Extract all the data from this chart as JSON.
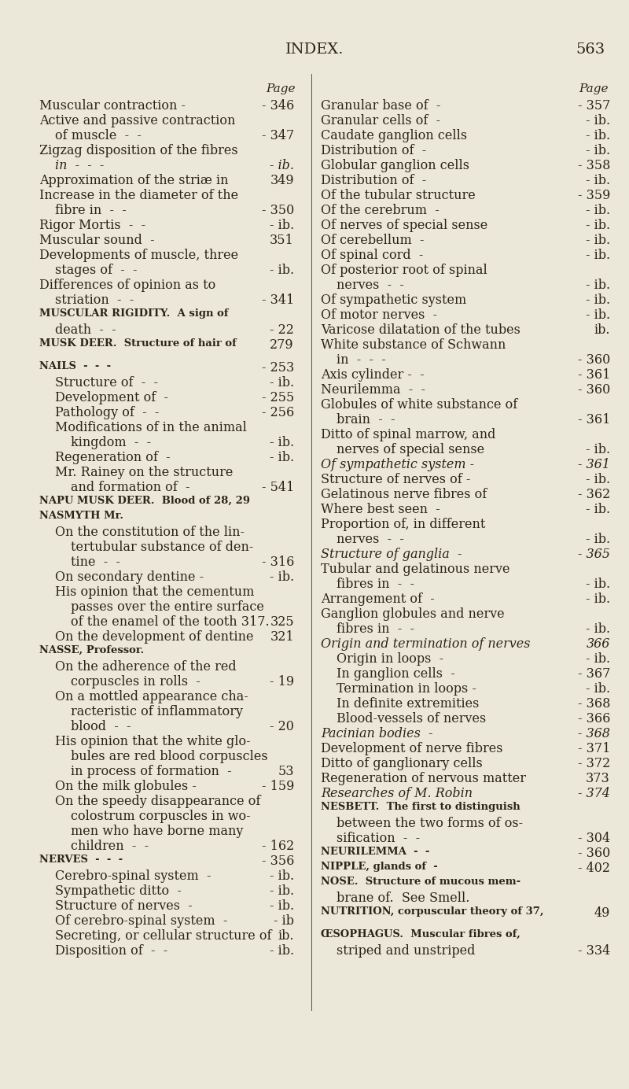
{
  "bg_color": "#ece8d9",
  "text_color": "#2b2418",
  "title": "INDEX.",
  "page_num": "563",
  "figsize": [
    8.0,
    13.84
  ],
  "dpi": 100,
  "title_fontsize": 14,
  "body_fontsize": 11.5,
  "page_header_fontsize": 11,
  "left_col": [
    {
      "t": "Muscular contraction -",
      "p": "- 346",
      "i": 0,
      "sc": false,
      "it": false
    },
    {
      "t": "Active and passive contraction",
      "p": "",
      "i": 0,
      "sc": false,
      "it": false
    },
    {
      "t": "of muscle  -  -",
      "p": "- 347",
      "i": 1,
      "sc": false,
      "it": false
    },
    {
      "t": "Zigzag disposition of the fibres",
      "p": "",
      "i": 0,
      "sc": false,
      "it": false
    },
    {
      "t": "in  -  -  -",
      "p": "- ib.",
      "i": 1,
      "sc": false,
      "it": true
    },
    {
      "t": "Approximation of the striæ in",
      "p": "349",
      "i": 0,
      "sc": false,
      "it": false
    },
    {
      "t": "Increase in the diameter of the",
      "p": "",
      "i": 0,
      "sc": false,
      "it": false
    },
    {
      "t": "fibre in  -  -",
      "p": "- 350",
      "i": 1,
      "sc": false,
      "it": false
    },
    {
      "t": "Rigor Mortis  -  -",
      "p": "- ib.",
      "i": 0,
      "sc": false,
      "it": false
    },
    {
      "t": "Muscular sound  -",
      "p": "351",
      "i": 0,
      "sc": false,
      "it": false
    },
    {
      "t": "Developments of muscle, three",
      "p": "",
      "i": 0,
      "sc": false,
      "it": false
    },
    {
      "t": "stages of  -  -",
      "p": "- ib.",
      "i": 1,
      "sc": false,
      "it": false
    },
    {
      "t": "Differences of opinion as to",
      "p": "",
      "i": 0,
      "sc": false,
      "it": false
    },
    {
      "t": "striation  -  -",
      "p": "- 341",
      "i": 1,
      "sc": false,
      "it": false
    },
    {
      "t": "MUSCULAR RIGIDITY.  A sign of",
      "p": "",
      "i": 0,
      "sc": true,
      "it": false
    },
    {
      "t": "death  -  -",
      "p": "- 22",
      "i": 1,
      "sc": false,
      "it": false
    },
    {
      "t": "MUSK DEER.  Structure of hair of",
      "p": "279",
      "i": 0,
      "sc": true,
      "it": false
    },
    {
      "t": "",
      "p": "",
      "i": 0,
      "sc": false,
      "it": false
    },
    {
      "t": "NAILS  -  -  -",
      "p": "- 253",
      "i": 0,
      "sc": true,
      "it": false
    },
    {
      "t": "Structure of  -  -",
      "p": "- ib.",
      "i": 1,
      "sc": false,
      "it": false
    },
    {
      "t": "Development of  -",
      "p": "- 255",
      "i": 1,
      "sc": false,
      "it": false
    },
    {
      "t": "Pathology of  -  -",
      "p": "- 256",
      "i": 1,
      "sc": false,
      "it": false
    },
    {
      "t": "Modifications of in the animal",
      "p": "",
      "i": 1,
      "sc": false,
      "it": false
    },
    {
      "t": "kingdom  -  -",
      "p": "- ib.",
      "i": 2,
      "sc": false,
      "it": false
    },
    {
      "t": "Regeneration of  -",
      "p": "- ib.",
      "i": 1,
      "sc": false,
      "it": false
    },
    {
      "t": "Mr. Rainey on the structure",
      "p": "",
      "i": 1,
      "sc": false,
      "it": false
    },
    {
      "t": "and formation of  -",
      "p": "- 541",
      "i": 2,
      "sc": false,
      "it": false
    },
    {
      "t": "NAPU MUSK DEER.  Blood of 28, 29",
      "p": "",
      "i": 0,
      "sc": true,
      "it": false
    },
    {
      "t": "NASMYTH Mr.",
      "p": "",
      "i": 0,
      "sc": true,
      "it": false
    },
    {
      "t": "On the constitution of the lin-",
      "p": "",
      "i": 1,
      "sc": false,
      "it": false
    },
    {
      "t": "tertubular substance of den-",
      "p": "",
      "i": 2,
      "sc": false,
      "it": false
    },
    {
      "t": "tine  -  -",
      "p": "- 316",
      "i": 2,
      "sc": false,
      "it": false
    },
    {
      "t": "On secondary dentine -",
      "p": "- ib.",
      "i": 1,
      "sc": false,
      "it": false
    },
    {
      "t": "His opinion that the cementum",
      "p": "",
      "i": 1,
      "sc": false,
      "it": false
    },
    {
      "t": "passes over the entire surface",
      "p": "",
      "i": 2,
      "sc": false,
      "it": false
    },
    {
      "t": "of the enamel of the tooth 317.",
      "p": "325",
      "i": 2,
      "sc": false,
      "it": false
    },
    {
      "t": "On the development of dentine",
      "p": "321",
      "i": 1,
      "sc": false,
      "it": false
    },
    {
      "t": "NASSE, Professor.",
      "p": "",
      "i": 0,
      "sc": true,
      "it": false
    },
    {
      "t": "On the adherence of the red",
      "p": "",
      "i": 1,
      "sc": false,
      "it": false
    },
    {
      "t": "corpuscles in rolls  -",
      "p": "- 19",
      "i": 2,
      "sc": false,
      "it": false
    },
    {
      "t": "On a mottled appearance cha-",
      "p": "",
      "i": 1,
      "sc": false,
      "it": false
    },
    {
      "t": "racteristic of inflammatory",
      "p": "",
      "i": 2,
      "sc": false,
      "it": false
    },
    {
      "t": "blood  -  -",
      "p": "- 20",
      "i": 2,
      "sc": false,
      "it": false
    },
    {
      "t": "His opinion that the white glo-",
      "p": "",
      "i": 1,
      "sc": false,
      "it": false
    },
    {
      "t": "bules are red blood corpuscles",
      "p": "",
      "i": 2,
      "sc": false,
      "it": false
    },
    {
      "t": "in process of formation  -",
      "p": "53",
      "i": 2,
      "sc": false,
      "it": false
    },
    {
      "t": "On the milk globules -",
      "p": "- 159",
      "i": 1,
      "sc": false,
      "it": false
    },
    {
      "t": "On the speedy disappearance of",
      "p": "",
      "i": 1,
      "sc": false,
      "it": false
    },
    {
      "t": "colostrum corpuscles in wo-",
      "p": "",
      "i": 2,
      "sc": false,
      "it": false
    },
    {
      "t": "men who have borne many",
      "p": "",
      "i": 2,
      "sc": false,
      "it": false
    },
    {
      "t": "children  -  -",
      "p": "- 162",
      "i": 2,
      "sc": false,
      "it": false
    },
    {
      "t": "NERVES  -  -  -",
      "p": "- 356",
      "i": 0,
      "sc": true,
      "it": false
    },
    {
      "t": "Cerebro-spinal system  -",
      "p": "- ib.",
      "i": 1,
      "sc": false,
      "it": false
    },
    {
      "t": "Sympathetic ditto  -",
      "p": "- ib.",
      "i": 1,
      "sc": false,
      "it": false
    },
    {
      "t": "Structure of nerves  -",
      "p": "- ib.",
      "i": 1,
      "sc": false,
      "it": false
    },
    {
      "t": "Of cerebro-spinal system  -",
      "p": "- ib",
      "i": 1,
      "sc": false,
      "it": false
    },
    {
      "t": "Secreting, or cellular structure of",
      "p": "ib.",
      "i": 1,
      "sc": false,
      "it": false
    },
    {
      "t": "Disposition of  -  -",
      "p": "- ib.",
      "i": 1,
      "sc": false,
      "it": false
    }
  ],
  "right_col": [
    {
      "t": "Granular base of  -",
      "p": "- 357",
      "i": 0,
      "sc": false,
      "it": false
    },
    {
      "t": "Granular cells of  -",
      "p": "- ib.",
      "i": 0,
      "sc": false,
      "it": false
    },
    {
      "t": "Caudate ganglion cells",
      "p": "- ib.",
      "i": 0,
      "sc": false,
      "it": false
    },
    {
      "t": "Distribution of  -",
      "p": "- ib.",
      "i": 0,
      "sc": false,
      "it": false
    },
    {
      "t": "Globular ganglion cells",
      "p": "- 358",
      "i": 0,
      "sc": false,
      "it": false
    },
    {
      "t": "Distribution of  -",
      "p": "- ib.",
      "i": 0,
      "sc": false,
      "it": false
    },
    {
      "t": "Of the tubular structure",
      "p": "- 359",
      "i": 0,
      "sc": false,
      "it": false
    },
    {
      "t": "Of the cerebrum  -",
      "p": "- ib.",
      "i": 0,
      "sc": false,
      "it": false
    },
    {
      "t": "Of nerves of special sense",
      "p": "- ib.",
      "i": 0,
      "sc": false,
      "it": false
    },
    {
      "t": "Of cerebellum  -",
      "p": "- ib.",
      "i": 0,
      "sc": false,
      "it": false
    },
    {
      "t": "Of spinal cord  -",
      "p": "- ib.",
      "i": 0,
      "sc": false,
      "it": false
    },
    {
      "t": "Of posterior root of spinal",
      "p": "",
      "i": 0,
      "sc": false,
      "it": false
    },
    {
      "t": "nerves  -  -",
      "p": "- ib.",
      "i": 1,
      "sc": false,
      "it": false
    },
    {
      "t": "Of sympathetic system",
      "p": "- ib.",
      "i": 0,
      "sc": false,
      "it": false
    },
    {
      "t": "Of motor nerves  -",
      "p": "- ib.",
      "i": 0,
      "sc": false,
      "it": false
    },
    {
      "t": "Varicose dilatation of the tubes",
      "p": "ib.",
      "i": 0,
      "sc": false,
      "it": false
    },
    {
      "t": "White substance of Schwann",
      "p": "",
      "i": 0,
      "sc": false,
      "it": false
    },
    {
      "t": "in  -  -  -",
      "p": "- 360",
      "i": 1,
      "sc": false,
      "it": false
    },
    {
      "t": "Axis cylinder -  -",
      "p": "- 361",
      "i": 0,
      "sc": false,
      "it": false
    },
    {
      "t": "Neurilemma  -  -",
      "p": "- 360",
      "i": 0,
      "sc": false,
      "it": false
    },
    {
      "t": "Globules of white substance of",
      "p": "",
      "i": 0,
      "sc": false,
      "it": false
    },
    {
      "t": "brain  -  -",
      "p": "- 361",
      "i": 1,
      "sc": false,
      "it": false
    },
    {
      "t": "Ditto of spinal marrow, and",
      "p": "",
      "i": 0,
      "sc": false,
      "it": false
    },
    {
      "t": "nerves of special sense",
      "p": "- ib.",
      "i": 1,
      "sc": false,
      "it": false
    },
    {
      "t": "Of sympathetic system -",
      "p": "- 361",
      "i": 0,
      "sc": false,
      "it": true
    },
    {
      "t": "Structure of nerves of -",
      "p": "- ib.",
      "i": 0,
      "sc": false,
      "it": false
    },
    {
      "t": "Gelatinous nerve fibres of",
      "p": "- 362",
      "i": 0,
      "sc": false,
      "it": false
    },
    {
      "t": "Where best seen  -",
      "p": "- ib.",
      "i": 0,
      "sc": false,
      "it": false
    },
    {
      "t": "Proportion of, in different",
      "p": "",
      "i": 0,
      "sc": false,
      "it": false
    },
    {
      "t": "nerves  -  -",
      "p": "- ib.",
      "i": 1,
      "sc": false,
      "it": false
    },
    {
      "t": "Structure of ganglia  -",
      "p": "- 365",
      "i": 0,
      "sc": false,
      "it": true
    },
    {
      "t": "Tubular and gelatinous nerve",
      "p": "",
      "i": 0,
      "sc": false,
      "it": false
    },
    {
      "t": "fibres in  -  -",
      "p": "- ib.",
      "i": 1,
      "sc": false,
      "it": false
    },
    {
      "t": "Arrangement of  -",
      "p": "- ib.",
      "i": 0,
      "sc": false,
      "it": false
    },
    {
      "t": "Ganglion globules and nerve",
      "p": "",
      "i": 0,
      "sc": false,
      "it": false
    },
    {
      "t": "fibres in  -  -",
      "p": "- ib.",
      "i": 1,
      "sc": false,
      "it": false
    },
    {
      "t": "Origin and termination of nerves",
      "p": "366",
      "i": 0,
      "sc": false,
      "it": true
    },
    {
      "t": "Origin in loops  -",
      "p": "- ib.",
      "i": 1,
      "sc": false,
      "it": false
    },
    {
      "t": "In ganglion cells  -",
      "p": "- 367",
      "i": 1,
      "sc": false,
      "it": false
    },
    {
      "t": "Termination in loops -",
      "p": "- ib.",
      "i": 1,
      "sc": false,
      "it": false
    },
    {
      "t": "In definite extremities",
      "p": "- 368",
      "i": 1,
      "sc": false,
      "it": false
    },
    {
      "t": "Blood-vessels of nerves",
      "p": "- 366",
      "i": 1,
      "sc": false,
      "it": false
    },
    {
      "t": "Pacinian bodies  -",
      "p": "- 368",
      "i": 0,
      "sc": false,
      "it": true
    },
    {
      "t": "Development of nerve fibres",
      "p": "- 371",
      "i": 0,
      "sc": false,
      "it": false
    },
    {
      "t": "Ditto of ganglionary cells",
      "p": "- 372",
      "i": 0,
      "sc": false,
      "it": false
    },
    {
      "t": "Regeneration of nervous matter",
      "p": "373",
      "i": 0,
      "sc": false,
      "it": false
    },
    {
      "t": "Researches of M. Robin",
      "p": "- 374",
      "i": 0,
      "sc": false,
      "it": true
    },
    {
      "t": "NESBETT.  The first to distinguish",
      "p": "",
      "i": 0,
      "sc": true,
      "it": false
    },
    {
      "t": "between the two forms of os-",
      "p": "",
      "i": 1,
      "sc": false,
      "it": false
    },
    {
      "t": "sification  -  -",
      "p": "- 304",
      "i": 1,
      "sc": false,
      "it": false
    },
    {
      "t": "NEURILEMMA  -  -",
      "p": "- 360",
      "i": 0,
      "sc": true,
      "it": false
    },
    {
      "t": "NIPPLE, glands of  -",
      "p": "- 402",
      "i": 0,
      "sc": true,
      "it": false
    },
    {
      "t": "NOSE.  Structure of mucous mem-",
      "p": "",
      "i": 0,
      "sc": true,
      "it": false
    },
    {
      "t": "brane of.  See Smell.",
      "p": "",
      "i": 1,
      "sc": false,
      "it": false
    },
    {
      "t": "NUTRITION, corpuscular theory of 37,",
      "p": "49",
      "i": 0,
      "sc": true,
      "it": false
    },
    {
      "t": "",
      "p": "",
      "i": 0,
      "sc": false,
      "it": false
    },
    {
      "t": "ŒSOPHAGUS.  Muscular fibres of,",
      "p": "",
      "i": 0,
      "sc": true,
      "it": false
    },
    {
      "t": "striped and unstriped",
      "p": "- 334",
      "i": 1,
      "sc": false,
      "it": false
    }
  ]
}
